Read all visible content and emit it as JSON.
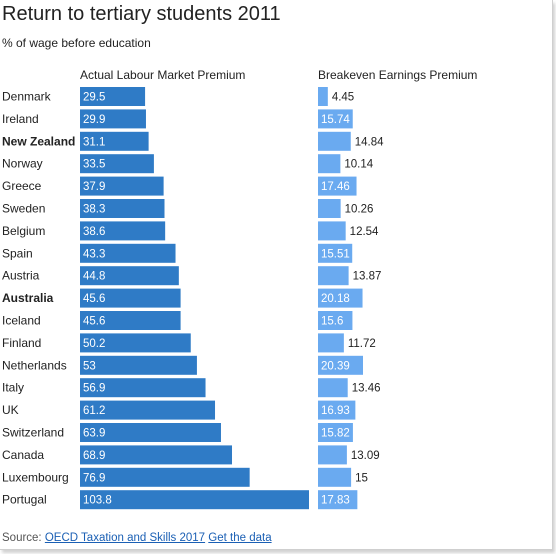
{
  "header": {
    "title": "Return to tertiary students 2011",
    "subtitle": "% of wage before education"
  },
  "footer": {
    "source_prefix": "Source:",
    "source_link": "OECD Taxation and Skills 2017",
    "data_link": "Get the data"
  },
  "colors": {
    "actual_bar": "#2f7bc6",
    "breakeven_bar": "#6aaaf0"
  },
  "chart_data": {
    "type": "bar",
    "orientation": "horizontal",
    "categories": [
      "Denmark",
      "Ireland",
      "New Zealand",
      "Norway",
      "Greece",
      "Sweden",
      "Belgium",
      "Spain",
      "Austria",
      "Australia",
      "Iceland",
      "Finland",
      "Netherlands",
      "Italy",
      "UK",
      "Switzerland",
      "Canada",
      "Luxembourg",
      "Portugal"
    ],
    "highlighted": [
      "New Zealand",
      "Australia"
    ],
    "series": [
      {
        "name": "Actual Labour Market Premium",
        "values": [
          29.5,
          29.9,
          31.1,
          33.5,
          37.9,
          38.3,
          38.6,
          43.3,
          44.8,
          45.6,
          45.6,
          50.2,
          53,
          56.9,
          61.2,
          63.9,
          68.9,
          76.9,
          103.8
        ],
        "labels": [
          "29.5",
          "29.9",
          "31.1",
          "33.5",
          "37.9",
          "38.3",
          "38.6",
          "43.3",
          "44.8",
          "45.6",
          "45.6",
          "50.2",
          "53",
          "56.9",
          "61.2",
          "63.9",
          "68.9",
          "76.9",
          "103.8"
        ]
      },
      {
        "name": "Breakeven Earnings Premium",
        "values": [
          4.45,
          15.74,
          14.84,
          10.14,
          17.46,
          10.26,
          12.54,
          15.51,
          13.87,
          20.18,
          15.6,
          11.72,
          20.39,
          13.46,
          16.93,
          15.82,
          13.09,
          15,
          17.83
        ],
        "labels": [
          "4.45",
          "15.74",
          "14.84",
          "10.14",
          "17.46",
          "10.26",
          "12.54",
          "15.51",
          "13.87",
          "20.18",
          "15.6",
          "11.72",
          "20.39",
          "13.46",
          "16.93",
          "15.82",
          "13.09",
          "15",
          "17.83"
        ]
      }
    ],
    "xlim": [
      [
        0,
        103.8
      ],
      [
        0,
        20.39
      ]
    ],
    "grid": false,
    "legend": "none"
  }
}
